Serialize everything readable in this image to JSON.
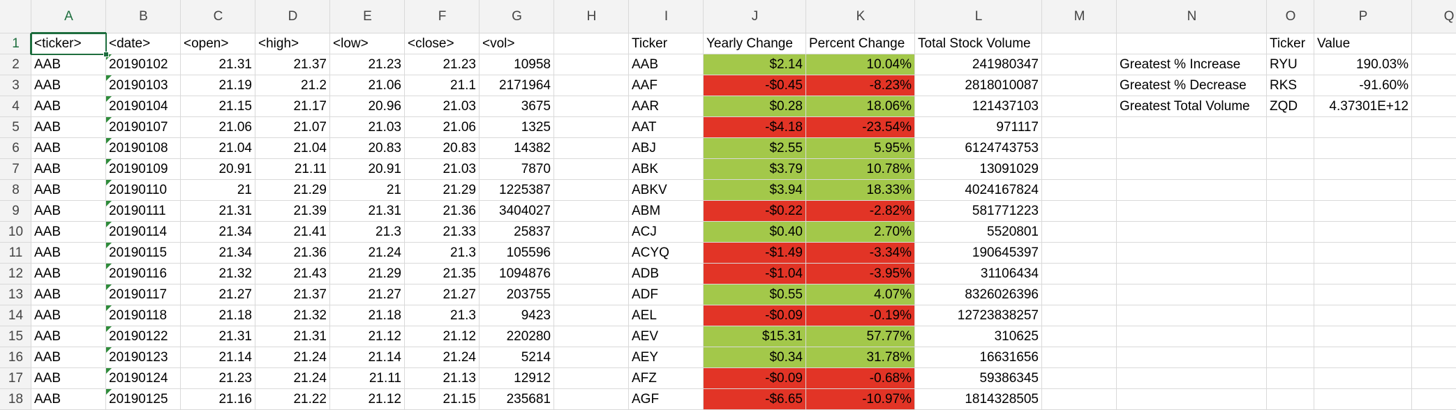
{
  "colors": {
    "positive_fill": "#a3c84a",
    "negative_fill": "#e23426",
    "selection": "#1e6e3e",
    "gridline": "#d9d9d9",
    "header_bg": "#f3f3f3"
  },
  "selection": {
    "active_cell": "A1"
  },
  "column_headers": [
    "A",
    "B",
    "C",
    "D",
    "E",
    "F",
    "G",
    "H",
    "I",
    "J",
    "K",
    "L",
    "M",
    "N",
    "O",
    "P",
    "Q"
  ],
  "row_headers": [
    "1",
    "2",
    "3",
    "4",
    "5",
    "6",
    "7",
    "8",
    "9",
    "10",
    "11",
    "12",
    "13",
    "14",
    "15",
    "16",
    "17",
    "18"
  ],
  "stock_table": {
    "headers": [
      "<ticker>",
      "<date>",
      "<open>",
      "<high>",
      "<low>",
      "<close>",
      "<vol>"
    ],
    "rows": [
      [
        "AAB",
        "20190102",
        "21.31",
        "21.37",
        "21.23",
        "21.23",
        "10958"
      ],
      [
        "AAB",
        "20190103",
        "21.19",
        "21.2",
        "21.06",
        "21.1",
        "2171964"
      ],
      [
        "AAB",
        "20190104",
        "21.15",
        "21.17",
        "20.96",
        "21.03",
        "3675"
      ],
      [
        "AAB",
        "20190107",
        "21.06",
        "21.07",
        "21.03",
        "21.06",
        "1325"
      ],
      [
        "AAB",
        "20190108",
        "21.04",
        "21.04",
        "20.83",
        "20.83",
        "14382"
      ],
      [
        "AAB",
        "20190109",
        "20.91",
        "21.11",
        "20.91",
        "21.03",
        "7870"
      ],
      [
        "AAB",
        "20190110",
        "21",
        "21.29",
        "21",
        "21.29",
        "1225387"
      ],
      [
        "AAB",
        "20190111",
        "21.31",
        "21.39",
        "21.31",
        "21.36",
        "3404027"
      ],
      [
        "AAB",
        "20190114",
        "21.34",
        "21.41",
        "21.3",
        "21.33",
        "25837"
      ],
      [
        "AAB",
        "20190115",
        "21.34",
        "21.36",
        "21.24",
        "21.3",
        "105596"
      ],
      [
        "AAB",
        "20190116",
        "21.32",
        "21.43",
        "21.29",
        "21.35",
        "1094876"
      ],
      [
        "AAB",
        "20190117",
        "21.27",
        "21.37",
        "21.27",
        "21.27",
        "203755"
      ],
      [
        "AAB",
        "20190118",
        "21.18",
        "21.32",
        "21.18",
        "21.3",
        "9423"
      ],
      [
        "AAB",
        "20190122",
        "21.31",
        "21.31",
        "21.12",
        "21.12",
        "220280"
      ],
      [
        "AAB",
        "20190123",
        "21.14",
        "21.24",
        "21.14",
        "21.24",
        "5214"
      ],
      [
        "AAB",
        "20190124",
        "21.23",
        "21.24",
        "21.11",
        "21.13",
        "12912"
      ],
      [
        "AAB",
        "20190125",
        "21.16",
        "21.22",
        "21.12",
        "21.15",
        "235681"
      ]
    ]
  },
  "summary_table": {
    "headers": [
      "Ticker",
      "Yearly Change",
      "Percent Change",
      "Total Stock Volume"
    ],
    "rows": [
      {
        "ticker": "AAB",
        "change": "$2.14",
        "percent": "10.04%",
        "volume": "241980347",
        "positive": true
      },
      {
        "ticker": "AAF",
        "change": "-$0.45",
        "percent": "-8.23%",
        "volume": "2818010087",
        "positive": false
      },
      {
        "ticker": "AAR",
        "change": "$0.28",
        "percent": "18.06%",
        "volume": "121437103",
        "positive": true
      },
      {
        "ticker": "AAT",
        "change": "-$4.18",
        "percent": "-23.54%",
        "volume": "971117",
        "positive": false
      },
      {
        "ticker": "ABJ",
        "change": "$2.55",
        "percent": "5.95%",
        "volume": "6124743753",
        "positive": true
      },
      {
        "ticker": "ABK",
        "change": "$3.79",
        "percent": "10.78%",
        "volume": "13091029",
        "positive": true
      },
      {
        "ticker": "ABKV",
        "change": "$3.94",
        "percent": "18.33%",
        "volume": "4024167824",
        "positive": true
      },
      {
        "ticker": "ABM",
        "change": "-$0.22",
        "percent": "-2.82%",
        "volume": "581771223",
        "positive": false
      },
      {
        "ticker": "ACJ",
        "change": "$0.40",
        "percent": "2.70%",
        "volume": "5520801",
        "positive": true
      },
      {
        "ticker": "ACYQ",
        "change": "-$1.49",
        "percent": "-3.34%",
        "volume": "190645397",
        "positive": false
      },
      {
        "ticker": "ADB",
        "change": "-$1.04",
        "percent": "-3.95%",
        "volume": "31106434",
        "positive": false
      },
      {
        "ticker": "ADF",
        "change": "$0.55",
        "percent": "4.07%",
        "volume": "8326026396",
        "positive": true
      },
      {
        "ticker": "AEL",
        "change": "-$0.09",
        "percent": "-0.19%",
        "volume": "12723838257",
        "positive": false
      },
      {
        "ticker": "AEV",
        "change": "$15.31",
        "percent": "57.77%",
        "volume": "310625",
        "positive": true
      },
      {
        "ticker": "AEY",
        "change": "$0.34",
        "percent": "31.78%",
        "volume": "16631656",
        "positive": true
      },
      {
        "ticker": "AFZ",
        "change": "-$0.09",
        "percent": "-0.68%",
        "volume": "59386345",
        "positive": false
      },
      {
        "ticker": "AGF",
        "change": "-$6.65",
        "percent": "-10.97%",
        "volume": "1814328505",
        "positive": false
      }
    ]
  },
  "greatest_table": {
    "headers": [
      "Ticker",
      "Value"
    ],
    "rows": [
      {
        "label": "Greatest % Increase",
        "ticker": "RYU",
        "value": "190.03%"
      },
      {
        "label": "Greatest % Decrease",
        "ticker": "RKS",
        "value": "-91.60%"
      },
      {
        "label": "Greatest Total Volume",
        "ticker": "ZQD",
        "value": "4.37301E+12"
      }
    ]
  }
}
